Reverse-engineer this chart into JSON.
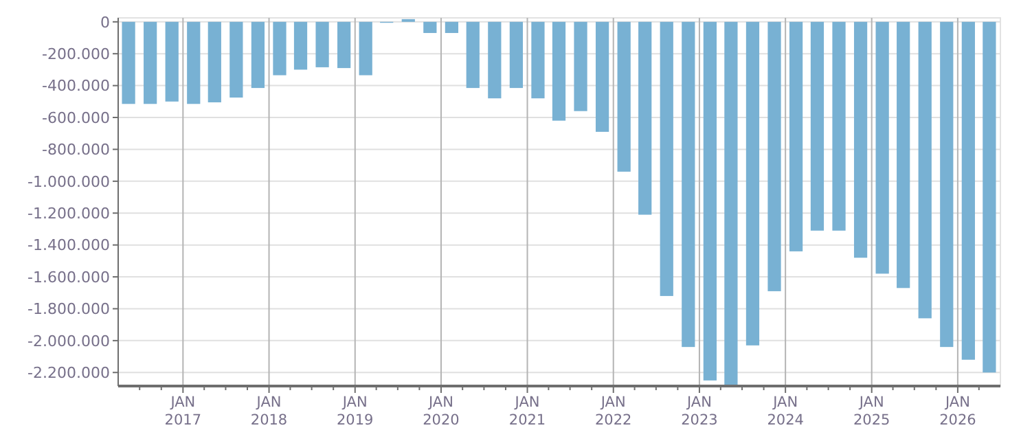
{
  "chart_data": {
    "type": "bar",
    "color": "#78b1d3",
    "x": [
      "2016-05-15",
      "2016-08-15",
      "2016-11-15",
      "2017-02-15",
      "2017-05-15",
      "2017-08-15",
      "2017-11-15",
      "2018-02-15",
      "2018-05-15",
      "2018-08-15",
      "2018-11-15",
      "2019-02-15",
      "2019-05-15",
      "2019-08-15",
      "2019-11-15",
      "2020-02-15",
      "2020-05-15",
      "2020-08-15",
      "2020-11-15",
      "2021-02-15",
      "2021-05-15",
      "2021-08-15",
      "2021-11-15",
      "2022-02-15",
      "2022-05-15",
      "2022-08-15",
      "2022-11-15",
      "2023-02-15",
      "2023-05-15",
      "2023-08-15",
      "2023-11-15",
      "2024-02-15",
      "2024-05-15",
      "2024-08-15",
      "2024-11-15",
      "2025-02-15",
      "2025-05-15",
      "2025-08-15",
      "2025-11-15",
      "2026-02-15",
      "2026-05-15"
    ],
    "values": [
      -515000,
      -515000,
      -500000,
      -515000,
      -505000,
      -475000,
      -415000,
      -335000,
      -300000,
      -285000,
      -290000,
      -335000,
      -6000,
      17000,
      -70000,
      -70000,
      -415000,
      -480000,
      -415000,
      -480000,
      -620000,
      -560000,
      -690000,
      -940000,
      -1210000,
      -1720000,
      -2040000,
      -2250000,
      -2280000,
      -2030000,
      -1690000,
      -1440000,
      -1310000,
      -1310000,
      -1480000,
      -1580000,
      -1670000,
      -1860000,
      -2040000,
      -2120000,
      -2200000
    ],
    "xlim": [
      "2016-04-01",
      "2026-07-01"
    ],
    "xticks": [
      {
        "value": "2016-07-01",
        "label": null
      },
      {
        "value": "2016-10-01",
        "label": null
      },
      {
        "value": "2017-01-01",
        "label": "JAN\n2017"
      },
      {
        "value": "2017-04-01",
        "label": null
      },
      {
        "value": "2017-07-01",
        "label": null
      },
      {
        "value": "2017-10-01",
        "label": null
      },
      {
        "value": "2018-01-01",
        "label": "JAN\n2018"
      },
      {
        "value": "2018-04-01",
        "label": null
      },
      {
        "value": "2018-07-01",
        "label": null
      },
      {
        "value": "2018-10-01",
        "label": null
      },
      {
        "value": "2019-01-01",
        "label": "JAN\n2019"
      },
      {
        "value": "2019-04-01",
        "label": null
      },
      {
        "value": "2019-07-01",
        "label": null
      },
      {
        "value": "2019-10-01",
        "label": null
      },
      {
        "value": "2020-01-01",
        "label": "JAN\n2020"
      },
      {
        "value": "2020-04-01",
        "label": null
      },
      {
        "value": "2020-07-01",
        "label": null
      },
      {
        "value": "2020-10-01",
        "label": null
      },
      {
        "value": "2021-01-01",
        "label": "JAN\n2021"
      },
      {
        "value": "2021-04-01",
        "label": null
      },
      {
        "value": "2021-07-01",
        "label": null
      },
      {
        "value": "2021-10-01",
        "label": null
      },
      {
        "value": "2022-01-01",
        "label": "JAN\n2022"
      },
      {
        "value": "2022-04-01",
        "label": null
      },
      {
        "value": "2022-07-01",
        "label": null
      },
      {
        "value": "2022-10-01",
        "label": null
      },
      {
        "value": "2023-01-01",
        "label": "JAN\n2023"
      },
      {
        "value": "2023-04-01",
        "label": null
      },
      {
        "value": "2023-07-01",
        "label": null
      },
      {
        "value": "2023-10-01",
        "label": null
      },
      {
        "value": "2024-01-01",
        "label": "JAN\n2024"
      },
      {
        "value": "2024-04-01",
        "label": null
      },
      {
        "value": "2024-07-01",
        "label": null
      },
      {
        "value": "2024-10-01",
        "label": null
      },
      {
        "value": "2025-01-01",
        "label": "JAN\n2025"
      },
      {
        "value": "2025-04-01",
        "label": null
      },
      {
        "value": "2025-07-01",
        "label": null
      },
      {
        "value": "2025-10-01",
        "label": null
      },
      {
        "value": "2026-01-01",
        "label": "JAN\n2026"
      },
      {
        "value": "2026-04-01",
        "label": null
      }
    ],
    "ylim": [
      -2285000,
      25000
    ],
    "yticks": [
      {
        "value": 0,
        "label": "0"
      },
      {
        "value": -200000,
        "label": "-200.000"
      },
      {
        "value": -400000,
        "label": "-400.000"
      },
      {
        "value": -600000,
        "label": "-600.000"
      },
      {
        "value": -800000,
        "label": "-800.000"
      },
      {
        "value": -1000000,
        "label": "-1.000.000"
      },
      {
        "value": -1200000,
        "label": "-1.200.000"
      },
      {
        "value": -1400000,
        "label": "-1.400.000"
      },
      {
        "value": -1600000,
        "label": "-1.600.000"
      },
      {
        "value": -1800000,
        "label": "-1.800.000"
      },
      {
        "value": -2000000,
        "label": "-2.000.000"
      },
      {
        "value": -2200000,
        "label": "-2.200.000"
      }
    ],
    "grid": true
  }
}
